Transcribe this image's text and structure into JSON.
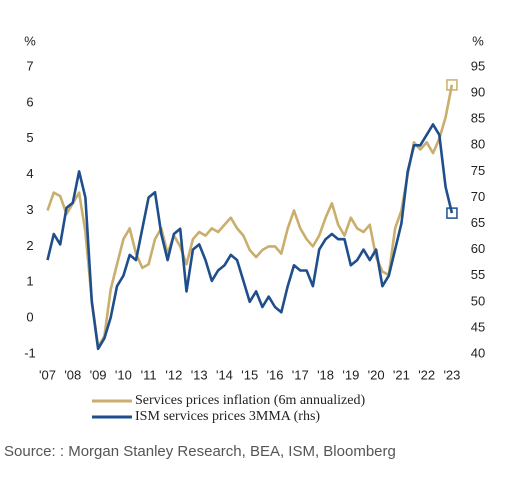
{
  "chart_data": {
    "type": "line",
    "y_label": "%",
    "y2_label": "%",
    "source": "Source: : Morgan Stanley Research, BEA, ISM, Bloomberg",
    "x": [
      2007.0,
      2007.25,
      2007.5,
      2007.75,
      2008.0,
      2008.25,
      2008.5,
      2008.75,
      2009.0,
      2009.25,
      2009.5,
      2009.75,
      2010.0,
      2010.25,
      2010.5,
      2010.75,
      2011.0,
      2011.25,
      2011.5,
      2011.75,
      2012.0,
      2012.25,
      2012.5,
      2012.75,
      2013.0,
      2013.25,
      2013.5,
      2013.75,
      2014.0,
      2014.25,
      2014.5,
      2014.75,
      2015.0,
      2015.25,
      2015.5,
      2015.75,
      2016.0,
      2016.25,
      2016.5,
      2016.75,
      2017.0,
      2017.25,
      2017.5,
      2017.75,
      2018.0,
      2018.25,
      2018.5,
      2018.75,
      2019.0,
      2019.25,
      2019.5,
      2019.75,
      2020.0,
      2020.25,
      2020.5,
      2020.75,
      2021.0,
      2021.25,
      2021.5,
      2021.75,
      2022.0,
      2022.25,
      2022.5,
      2022.75,
      2023.0
    ],
    "series": [
      {
        "name": "Services prices inflation (6m annualized)",
        "color": "#c9ae6c",
        "axis": "y",
        "values": [
          3.0,
          3.5,
          3.4,
          2.9,
          3.2,
          3.5,
          2.4,
          0.5,
          -0.8,
          -0.5,
          0.8,
          1.5,
          2.2,
          2.5,
          1.8,
          1.4,
          1.5,
          2.2,
          2.5,
          1.8,
          2.3,
          2.0,
          1.5,
          2.2,
          2.4,
          2.3,
          2.5,
          2.4,
          2.6,
          2.8,
          2.5,
          2.3,
          1.9,
          1.7,
          1.9,
          2.0,
          2.0,
          1.8,
          2.5,
          3.0,
          2.5,
          2.2,
          2.0,
          2.3,
          2.8,
          3.2,
          2.6,
          2.3,
          2.8,
          2.5,
          2.4,
          2.6,
          1.7,
          1.3,
          1.2,
          2.5,
          3.0,
          4.0,
          4.9,
          4.7,
          4.9,
          4.6,
          5.0,
          5.6,
          6.5
        ]
      },
      {
        "name": "ISM services prices 3MMA (rhs)",
        "color": "#1f4e8c",
        "axis": "y2",
        "values": [
          58,
          63,
          61,
          68,
          69,
          75,
          70,
          50,
          41,
          43,
          47,
          53,
          55,
          59,
          58,
          64,
          70,
          71,
          63,
          58,
          63,
          64,
          52,
          60,
          61,
          58,
          54,
          56,
          57,
          59,
          58,
          54,
          50,
          52,
          49,
          51,
          49,
          48,
          53,
          57,
          56,
          56,
          53,
          60,
          62,
          63,
          62,
          62,
          57,
          58,
          60,
          58,
          60,
          53,
          55,
          60,
          65,
          75,
          80,
          80,
          82,
          84,
          82,
          72,
          67
        ]
      }
    ],
    "xlim": [
      2006.9,
      2023.2
    ],
    "xticks": [
      {
        "value": 2007,
        "label": "'07"
      },
      {
        "value": 2008,
        "label": "'08"
      },
      {
        "value": 2009,
        "label": "'09"
      },
      {
        "value": 2010,
        "label": "'10"
      },
      {
        "value": 2011,
        "label": "'11"
      },
      {
        "value": 2012,
        "label": "'12"
      },
      {
        "value": 2013,
        "label": "'13"
      },
      {
        "value": 2014,
        "label": "'14"
      },
      {
        "value": 2015,
        "label": "'15"
      },
      {
        "value": 2016,
        "label": "'16"
      },
      {
        "value": 2017,
        "label": "'17"
      },
      {
        "value": 2018,
        "label": "'18"
      },
      {
        "value": 2019,
        "label": "'19"
      },
      {
        "value": 2020,
        "label": "'20"
      },
      {
        "value": 2021,
        "label": "'21"
      },
      {
        "value": 2022,
        "label": "'22"
      },
      {
        "value": 2023,
        "label": "'23"
      }
    ],
    "ylim": [
      -1,
      7
    ],
    "yticks": [
      -1,
      0,
      1,
      2,
      3,
      4,
      5,
      6,
      7
    ],
    "y2lim": [
      40,
      95
    ],
    "y2ticks": [
      40,
      45,
      50,
      55,
      60,
      65,
      70,
      75,
      80,
      85,
      90,
      95
    ],
    "end_markers": true,
    "grid": false
  }
}
